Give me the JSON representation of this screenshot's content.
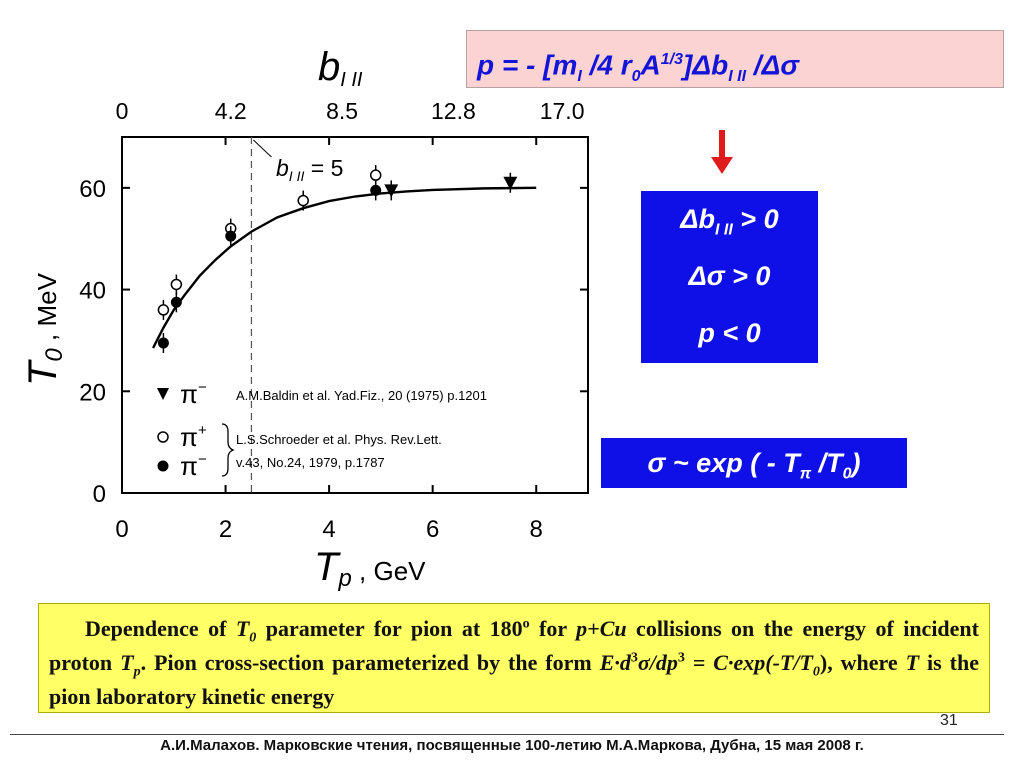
{
  "slide": {
    "formula": {
      "p": "p = - [m",
      "sub_I": "I",
      "mid": " /4 r",
      "sub_0": "0",
      "A": "A",
      "sup_13": "1/3",
      "delta_b": "]Δb",
      "sub_III": "I II",
      "tail": " /Δσ"
    },
    "conditions": {
      "line1_prefix": "Δb",
      "line1_sub": "I II",
      "line1_suffix": " > 0",
      "line2": "Δσ  > 0",
      "line3": "p < 0"
    },
    "sigma_formula": {
      "prefix": "σ ~ exp ( - T",
      "sub_pi": "π",
      "mid": " /T",
      "sub_0": "0",
      "suffix": ")"
    },
    "caption": {
      "t1": "Dependence of ",
      "t0": "T",
      "t0_sub": "0",
      "t2": " parameter for pion at 180",
      "deg": "o",
      "t3": " for ",
      "pcu": "p+Cu",
      "t4": " collisions on the energy of incident proton ",
      "tp": "T",
      "tp_sub": "p",
      "t5": ". Pion cross-section parameterized by the form ",
      "e1": "E·d",
      "e1_sup": "3",
      "e2": "σ/dp",
      "e2_sup": "3",
      "e3": " = C·exp(-T/T",
      "e3_sub": "0",
      "t6": "), where ",
      "t_var": "T",
      "t7": " is the pion laboratory kinetic energy"
    },
    "page_number": "31",
    "footer": "А.И.Малахов. Марковские чтения, посвященные 100-летию М.А.Маркова, Дубна, 15 мая 2008 г.",
    "arrow_color": "#e01b1b",
    "accent_blue": "#0f0fe8"
  },
  "chart_data": {
    "type": "scatter",
    "x_label_main": "T",
    "x_label_sub": "p",
    "x_label_unit": " , GeV",
    "y_label_main": "T",
    "y_label_sub": "0",
    "y_label_unit": " , MeV",
    "top_axis_label_main": "b",
    "top_axis_label_sub": "I II",
    "xlim": [
      0,
      9
    ],
    "ylim": [
      0,
      70
    ],
    "x_ticks": [
      0,
      2,
      4,
      6,
      8
    ],
    "x_tick_labels": [
      "0",
      "2",
      "4",
      "6",
      "8"
    ],
    "y_ticks": [
      0,
      20,
      40,
      60
    ],
    "y_tick_labels": [
      "0",
      "20",
      "40",
      "60"
    ],
    "top_ticks_x": [
      0,
      2.1,
      4.25,
      6.4,
      8.5
    ],
    "top_tick_labels": [
      "0",
      "4.2",
      "8.5",
      "12.8",
      "17.0"
    ],
    "vline_x": 2.5,
    "vline_label_main": "b",
    "vline_label_sub": "I II",
    "vline_label_value": " = 5",
    "series": [
      {
        "name": "π⁻",
        "name_base": "π",
        "name_sup": "−",
        "marker": "triangle-down",
        "points": [
          [
            5.2,
            59.5
          ],
          [
            7.5,
            61
          ]
        ]
      },
      {
        "name": "π⁺",
        "name_base": "π",
        "name_sup": "+",
        "marker": "open-circle",
        "points": [
          [
            0.8,
            36
          ],
          [
            1.05,
            41
          ],
          [
            2.1,
            52
          ],
          [
            3.5,
            57.5
          ],
          [
            4.9,
            62.5
          ]
        ]
      },
      {
        "name": "π⁻",
        "name_base": "π",
        "name_sup": "−",
        "marker": "filled-circle",
        "points": [
          [
            0.8,
            29.5
          ],
          [
            1.05,
            37.5
          ],
          [
            2.1,
            50.5
          ],
          [
            4.9,
            59.5
          ]
        ]
      }
    ],
    "fit_curve": {
      "x": [
        0.6,
        0.8,
        1.0,
        1.2,
        1.5,
        1.8,
        2.1,
        2.5,
        3.0,
        3.5,
        4.0,
        4.5,
        5.0,
        5.5,
        6.0,
        7.0,
        8.0
      ],
      "y": [
        28.5,
        32.5,
        36.0,
        38.8,
        42.7,
        45.8,
        48.5,
        51.4,
        54.2,
        56.0,
        57.4,
        58.3,
        58.9,
        59.3,
        59.6,
        59.9,
        60.0
      ]
    },
    "legend_refs": [
      "A.M.Baldin et al. Yad.Fiz., 20 (1975) p.1201",
      "L.S.Schroeder et al. Phys. Rev.Lett.",
      "v.43, No.24, 1979, p.1787"
    ]
  }
}
